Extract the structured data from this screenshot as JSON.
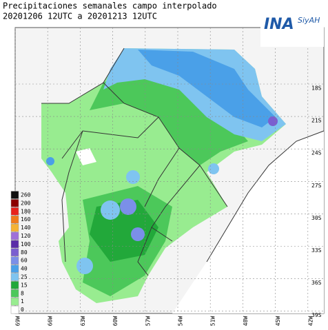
{
  "header": {
    "title_line1": "Precipitaciones semanales campo interpolado",
    "title_line2": "20201206 12UTC a 20201213 12UTC"
  },
  "logo": {
    "name": "INA",
    "tagline": "SiyAH"
  },
  "legend": {
    "labels": [
      260,
      200,
      180,
      160,
      140,
      120,
      100,
      80,
      60,
      40,
      25,
      15,
      8,
      1,
      0
    ],
    "colors": [
      "#111111",
      "#8b0000",
      "#e8221c",
      "#f07a1a",
      "#f5b233",
      "#a070d8",
      "#5a2ca8",
      "#7a5fd0",
      "#7b8fe8",
      "#4aa0e8",
      "#7fc4f0",
      "#22a83a",
      "#4cc85a",
      "#98ec90",
      "#ffffff"
    ]
  },
  "axes": {
    "lon_labels": [
      "69W",
      "66W",
      "63W",
      "60W",
      "57W",
      "54W",
      "51W",
      "48W",
      "45W",
      "42W"
    ],
    "lat_labels": [
      "18S",
      "21S",
      "24S",
      "27S",
      "30S",
      "33S",
      "36S",
      "39S"
    ]
  }
}
